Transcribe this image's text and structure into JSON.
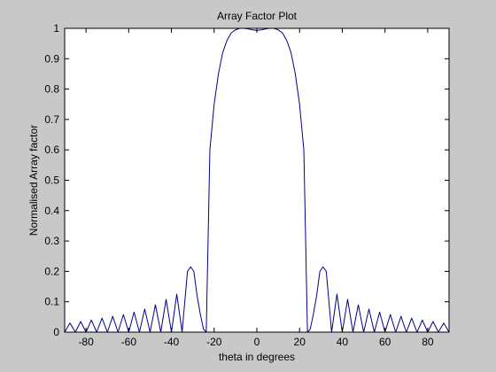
{
  "colors": {
    "figure_background": "#c8c8c8",
    "axes_background": "#ffffff",
    "line": "#00008b",
    "axis": "#000000"
  },
  "chart_data": {
    "type": "line",
    "title": "Array Factor Plot",
    "xlabel": "theta in degrees",
    "ylabel": "Normalised Array factor",
    "xlim": [
      -90,
      90
    ],
    "ylim": [
      0,
      1
    ],
    "xticks": [
      -80,
      -60,
      -40,
      -20,
      0,
      20,
      40,
      60,
      80
    ],
    "yticks": [
      0,
      0.1,
      0.2,
      0.3,
      0.4,
      0.5,
      0.6,
      0.7,
      0.8,
      0.9,
      1
    ],
    "ytick_labels": [
      "0",
      "0.1",
      "0.2",
      "0.3",
      "0.4",
      "0.5",
      "0.6",
      "0.7",
      "0.8",
      "0.9",
      "1"
    ],
    "grid": false,
    "series": [
      {
        "x": [
          -90,
          -87.5,
          -85,
          -82.5,
          -80,
          -77.5,
          -75,
          -72.5,
          -70,
          -67.5,
          -65,
          -62.5,
          -60,
          -57.5,
          -55,
          -52.5,
          -50,
          -47.5,
          -45,
          -42.5,
          -40,
          -37.5,
          -35,
          -32.5,
          -31,
          -29.5,
          -28,
          -26.5,
          -25,
          -23.7,
          -22,
          -20,
          -18,
          -16,
          -14,
          -12,
          -10,
          -8,
          -6,
          -4,
          -2,
          0,
          2,
          4,
          6,
          8,
          10,
          12,
          14,
          16,
          18,
          20,
          22,
          23.7,
          25,
          26.5,
          28,
          29.5,
          31,
          32.5,
          35,
          37.5,
          40,
          42.5,
          45,
          47.5,
          50,
          52.5,
          55,
          57.5,
          60,
          62.5,
          65,
          67.5,
          70,
          72.5,
          75,
          77.5,
          80,
          82.5,
          85,
          87.5,
          90
        ],
        "y": [
          0,
          0.03,
          0,
          0.035,
          0,
          0.04,
          0,
          0.046,
          0,
          0.052,
          0,
          0.058,
          0,
          0.066,
          0,
          0.076,
          0,
          0.09,
          0,
          0.108,
          0,
          0.125,
          0,
          0.2,
          0.215,
          0.2,
          0.12,
          0.06,
          0.01,
          0,
          0.6,
          0.75,
          0.85,
          0.92,
          0.96,
          0.985,
          0.995,
          1.0,
          1.0,
          0.998,
          0.995,
          0.993,
          0.995,
          0.998,
          1.0,
          1.0,
          0.995,
          0.985,
          0.96,
          0.92,
          0.85,
          0.75,
          0.6,
          0,
          0.01,
          0.06,
          0.12,
          0.2,
          0.215,
          0.2,
          0,
          0.125,
          0,
          0.108,
          0,
          0.09,
          0,
          0.076,
          0,
          0.066,
          0,
          0.058,
          0,
          0.052,
          0,
          0.046,
          0,
          0.04,
          0,
          0.035,
          0,
          0.03,
          0
        ]
      }
    ]
  }
}
